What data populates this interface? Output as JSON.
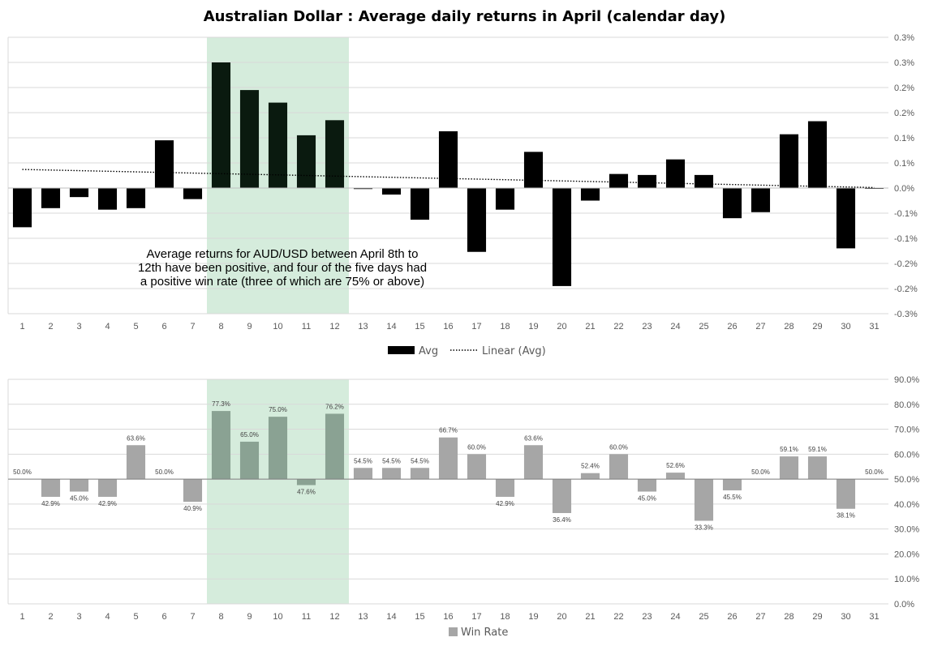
{
  "title": "Australian Dollar : Average daily returns in April (calendar day)",
  "colors": {
    "avg_bar": "#000000",
    "avg_bar_highlight": "#0a1a0f",
    "winrate_bar": "#a6a6a6",
    "winrate_bar_highlight": "#8aa293",
    "highlight_band": "#d5ecdc",
    "grid": "#d9d9d9"
  },
  "annotation": {
    "lines": [
      "Average returns for AUD/USD between April 8th to",
      "12th have been positive, and four of the five days had",
      "a positive win rate (three of which are 75% or above)"
    ]
  },
  "chart_data": [
    {
      "type": "bar",
      "title": "Australian Dollar : Average daily returns in April (calendar day)",
      "categories": [
        "1",
        "2",
        "3",
        "4",
        "5",
        "6",
        "7",
        "8",
        "9",
        "10",
        "11",
        "12",
        "13",
        "14",
        "15",
        "16",
        "17",
        "18",
        "19",
        "20",
        "21",
        "22",
        "23",
        "24",
        "25",
        "26",
        "27",
        "28",
        "29",
        "30",
        "31"
      ],
      "series": [
        {
          "name": "Avg",
          "values": [
            -0.078,
            -0.04,
            -0.018,
            -0.043,
            -0.04,
            0.095,
            -0.022,
            0.25,
            0.195,
            0.17,
            0.105,
            0.135,
            -0.002,
            -0.013,
            -0.063,
            0.113,
            -0.127,
            -0.043,
            0.072,
            -0.195,
            -0.025,
            0.028,
            0.026,
            0.057,
            0.026,
            -0.06,
            -0.048,
            0.107,
            0.133,
            -0.12,
            0.0
          ]
        }
      ],
      "trendline": {
        "name": "Linear (Avg)",
        "start": 0.037,
        "end": 0.001
      },
      "y_tick_labels": [
        "0.3%",
        "0.3%",
        "0.2%",
        "0.2%",
        "0.1%",
        "0.1%",
        "0.0%",
        "-0.1%",
        "-0.1%",
        "-0.2%",
        "-0.2%",
        "-0.3%"
      ],
      "ylim": [
        -0.25,
        0.3
      ],
      "highlight_categories": [
        "8",
        "12"
      ],
      "legend": [
        "Avg",
        "Linear (Avg)"
      ],
      "legend_position": "bottom",
      "grid": true
    },
    {
      "type": "bar",
      "categories": [
        "1",
        "2",
        "3",
        "4",
        "5",
        "6",
        "7",
        "8",
        "9",
        "10",
        "11",
        "12",
        "13",
        "14",
        "15",
        "16",
        "17",
        "18",
        "19",
        "20",
        "21",
        "22",
        "23",
        "24",
        "25",
        "26",
        "27",
        "28",
        "29",
        "30",
        "31"
      ],
      "baseline": 50.0,
      "series": [
        {
          "name": "Win Rate",
          "values": [
            50.0,
            42.9,
            45.0,
            42.9,
            63.6,
            50.0,
            40.9,
            77.3,
            65.0,
            75.0,
            47.6,
            76.2,
            54.5,
            54.5,
            54.5,
            66.7,
            60.0,
            42.9,
            63.6,
            36.4,
            52.4,
            60.0,
            45.0,
            52.6,
            33.3,
            45.5,
            50.0,
            59.1,
            59.1,
            38.1,
            50.0
          ],
          "data_labels": [
            "50.0%",
            "42.9%",
            "45.0%",
            "42.9%",
            "63.6%",
            "50.0%",
            "40.9%",
            "77.3%",
            "65.0%",
            "75.0%",
            "47.6%",
            "76.2%",
            "54.5%",
            "54.5%",
            "54.5%",
            "66.7%",
            "60.0%",
            "42.9%",
            "63.6%",
            "36.4%",
            "52.4%",
            "60.0%",
            "45.0%",
            "52.6%",
            "33.3%",
            "45.5%",
            "50.0%",
            "59.1%",
            "59.1%",
            "38.1%",
            "50.0%"
          ]
        }
      ],
      "y_tick_labels": [
        "90.0%",
        "80.0%",
        "70.0%",
        "60.0%",
        "50.0%",
        "40.0%",
        "30.0%",
        "20.0%",
        "10.0%",
        "0.0%"
      ],
      "ylim": [
        0,
        90
      ],
      "highlight_categories": [
        "8",
        "12"
      ],
      "legend": [
        "Win Rate"
      ],
      "legend_position": "bottom",
      "grid": true
    }
  ]
}
